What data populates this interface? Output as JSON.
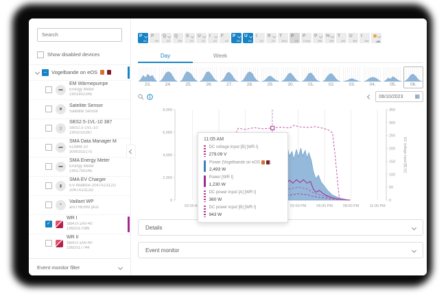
{
  "sidebar": {
    "search_placeholder": "Search",
    "show_disabled_label": "Show disabled devices",
    "plant": {
      "name": "Vogelbande on eOS",
      "checkbox": "indeterminate",
      "accent": "#1782c4",
      "badges": 2
    },
    "devices": [
      {
        "name": "EM Wärmepumpe",
        "type": "Energy Meter",
        "serial": "1901402345",
        "icon": "meter",
        "checked": false
      },
      {
        "name": "Satellite Sensor",
        "type": "Satellite Sensor",
        "serial": "",
        "icon": "satellite",
        "checked": false
      },
      {
        "name": "SBS2.5-1VL-10 387",
        "type": "SBS2.5-1VL-10",
        "serial": "1901010387",
        "icon": "battery",
        "checked": false
      },
      {
        "name": "SMA Data Manager M",
        "type": "EDMM-10",
        "serial": "3000315175",
        "icon": "datamanager",
        "checked": false
      },
      {
        "name": "SMA Energy Meter",
        "type": "Energy Meter",
        "serial": "1901700245",
        "icon": "meter",
        "checked": false
      },
      {
        "name": "SMA EV Charger",
        "type": "EV-Wallbox-2047A1312D",
        "serial": "2047A1312D",
        "icon": "evcharger",
        "checked": false
      },
      {
        "name": "Vaillant WP",
        "type": "aroTHERM plus",
        "serial": "",
        "icon": "heatpump",
        "checked": false
      },
      {
        "name": "WR I",
        "type": "SB4.0-1AV-40",
        "serial": "1992017089",
        "icon": "inverter",
        "checked": true,
        "accent": "#a3278f"
      },
      {
        "name": "WR II",
        "type": "SB4.0-1AV-40",
        "serial": "1992017744",
        "icon": "inverter",
        "checked": false
      }
    ],
    "footer_label": "Event monitor filter"
  },
  "toolbar": {
    "buttons": [
      {
        "main": "P",
        "sub": "AC",
        "selected": true,
        "dropdown": true
      },
      {
        "main": "P",
        "sub": "Set",
        "selected": false,
        "dropdown": false
      },
      {
        "main": "Q",
        "sub": "AC",
        "selected": false,
        "dropdown": true
      },
      {
        "main": "Q",
        "sub": "Set",
        "selected": false,
        "dropdown": false
      },
      {
        "main": "S",
        "sub": "AC",
        "selected": false,
        "dropdown": true
      },
      {
        "main": "U",
        "sub": "AC",
        "selected": false,
        "dropdown": true
      },
      {
        "main": "I",
        "sub": "AC",
        "selected": false,
        "dropdown": true
      },
      {
        "main": "F",
        "sub": "AC",
        "selected": false,
        "dropdown": false
      },
      {
        "main": "P",
        "sub": "DC",
        "selected": true,
        "dropdown": true
      },
      {
        "main": "U",
        "sub": "DC",
        "selected": true,
        "dropdown": true
      },
      {
        "main": "I",
        "sub": "DC",
        "selected": false,
        "dropdown": false
      },
      {
        "main": "R",
        "sub": "DC",
        "selected": false,
        "dropdown": true
      },
      {
        "main": "T",
        "sub": "Mod",
        "selected": false,
        "dropdown": false
      },
      {
        "main": "P",
        "sub": "AC",
        "selected": false,
        "dropdown": false,
        "pressed": true
      },
      {
        "main": "P",
        "sub": "Comp",
        "selected": false,
        "dropdown": false
      },
      {
        "main": "P",
        "sub": "Bat",
        "selected": false,
        "dropdown": true
      },
      {
        "main": "%",
        "sub": "Bat",
        "selected": false,
        "dropdown": true
      },
      {
        "main": "T",
        "sub": "Bat",
        "selected": false,
        "dropdown": false
      },
      {
        "main": "U",
        "sub": "Bat",
        "selected": false,
        "dropdown": false
      },
      {
        "main": "I",
        "sub": "Bat",
        "selected": false,
        "dropdown": false
      },
      {
        "main": "",
        "sub": "",
        "selected": false,
        "dropdown": true,
        "icon": "weather"
      }
    ]
  },
  "tabs": {
    "day": "Day",
    "week": "Week"
  },
  "mini_days": {
    "tiles": [
      {
        "label": "23.",
        "selected": false,
        "shape": [
          0,
          0.2,
          0.5,
          0.3,
          0.6,
          0.4,
          0.5,
          0.2,
          0
        ]
      },
      {
        "label": "24.",
        "selected": false,
        "shape": [
          0,
          0.1,
          0.4,
          0.7,
          0.8,
          0.7,
          0.4,
          0.1,
          0
        ]
      },
      {
        "label": "25.",
        "selected": false,
        "shape": [
          0,
          0.1,
          0.5,
          0.8,
          0.75,
          0.6,
          0.3,
          0.1,
          0
        ]
      },
      {
        "label": "26.",
        "selected": false,
        "shape": [
          0,
          0.1,
          0.4,
          0.75,
          0.8,
          0.6,
          0.3,
          0.1,
          0
        ]
      },
      {
        "label": "27.",
        "selected": false,
        "shape": [
          0,
          0.1,
          0.35,
          0.7,
          0.75,
          0.55,
          0.25,
          0.05,
          0
        ]
      },
      {
        "label": "28.",
        "selected": false,
        "shape": [
          0,
          0.1,
          0.4,
          0.7,
          0.8,
          0.65,
          0.3,
          0.1,
          0
        ]
      },
      {
        "label": "29.",
        "selected": false,
        "shape": [
          0,
          0.05,
          0.2,
          0.4,
          0.45,
          0.3,
          0.15,
          0.05,
          0
        ]
      },
      {
        "label": "30.",
        "selected": false,
        "shape": [
          0,
          0.1,
          0.3,
          0.6,
          0.7,
          0.5,
          0.25,
          0.05,
          0
        ]
      },
      {
        "label": "01.",
        "selected": false,
        "shape": [
          0,
          0.1,
          0.35,
          0.65,
          0.7,
          0.5,
          0.2,
          0.05,
          0
        ]
      },
      {
        "label": "02.",
        "selected": false,
        "shape": [
          0,
          0.1,
          0.4,
          0.6,
          0.65,
          0.45,
          0.2,
          0.05,
          0
        ]
      },
      {
        "label": "03.",
        "selected": false,
        "shape": [
          0,
          0.05,
          0.1,
          0.2,
          0.25,
          0.15,
          0.1,
          0,
          0
        ]
      },
      {
        "label": "04.",
        "selected": false,
        "shape": [
          0,
          0.05,
          0.2,
          0.3,
          0.35,
          0.3,
          0.2,
          0.05,
          0
        ]
      },
      {
        "label": "05.",
        "selected": false,
        "shape": [
          0,
          0.1,
          0.3,
          0.2,
          0.4,
          0.3,
          0.15,
          0.05,
          0
        ]
      },
      {
        "label": "06.",
        "selected": true,
        "shape": [
          0,
          0.1,
          0.3,
          0.55,
          0.6,
          0.45,
          0.2,
          0.05,
          0
        ]
      }
    ]
  },
  "datebar": {
    "date": "06/10/2023"
  },
  "chart_data": {
    "type": "combo",
    "x_unit": "hour",
    "xlim": [
      0,
      24
    ],
    "x_ticks": [
      {
        "h": 2,
        "label": "02:00 AM"
      },
      {
        "h": 5,
        "label": "05:00 AM"
      },
      {
        "h": 8,
        "label": "08:00 AM"
      },
      {
        "h": 11,
        "label": "11:00 AM"
      },
      {
        "h": 14,
        "label": "02:00 PM"
      },
      {
        "h": 17,
        "label": "05:00 PM"
      },
      {
        "h": 20,
        "label": "08:00 PM"
      },
      {
        "h": 23,
        "label": "11:00 PM"
      }
    ],
    "left_axis": {
      "max": 8000,
      "ticks": [
        {
          "v": 0,
          "label": "0"
        },
        {
          "v": 2000,
          "label": "2,000"
        },
        {
          "v": 4000,
          "label": "4,000"
        },
        {
          "v": 6000,
          "label": "6,000"
        },
        {
          "v": 8000,
          "label": "8,000"
        }
      ]
    },
    "right_axis": {
      "max": 350,
      "title": "DC voltage input [B] [V]",
      "ticks": [
        {
          "v": 0,
          "label": "0"
        },
        {
          "v": 50,
          "label": "50"
        },
        {
          "v": 100,
          "label": "100"
        },
        {
          "v": 150,
          "label": "150"
        },
        {
          "v": 200,
          "label": "200"
        },
        {
          "v": 250,
          "label": "250"
        },
        {
          "v": 300,
          "label": "300"
        },
        {
          "v": 350,
          "label": "350"
        }
      ]
    },
    "cursor": {
      "hour": 11.08,
      "right_value": 279
    },
    "series": [
      {
        "name": "Power [Vogelbande on eOS]",
        "kind": "area",
        "axis": "left",
        "style": "solid",
        "color": "#6d9fc9",
        "fill": "#8fb5d8",
        "points": [
          [
            8.3,
            0
          ],
          [
            8.6,
            350
          ],
          [
            8.9,
            1200
          ],
          [
            9.1,
            700
          ],
          [
            9.4,
            2100
          ],
          [
            9.7,
            1500
          ],
          [
            10.0,
            2900
          ],
          [
            10.2,
            2200
          ],
          [
            10.5,
            3400
          ],
          [
            10.8,
            2600
          ],
          [
            11.08,
            2493
          ],
          [
            11.3,
            3600
          ],
          [
            11.5,
            2900
          ],
          [
            11.8,
            4100
          ],
          [
            12.0,
            3400
          ],
          [
            12.3,
            4400
          ],
          [
            12.5,
            3700
          ],
          [
            12.8,
            4600
          ],
          [
            13.0,
            3900
          ],
          [
            13.3,
            4300
          ],
          [
            13.5,
            3600
          ],
          [
            13.8,
            4500
          ],
          [
            14.0,
            3800
          ],
          [
            14.3,
            4600
          ],
          [
            14.5,
            3900
          ],
          [
            14.8,
            4400
          ],
          [
            15.0,
            3700
          ],
          [
            15.2,
            4200
          ],
          [
            15.5,
            3500
          ],
          [
            15.7,
            2600
          ],
          [
            16.0,
            1900
          ],
          [
            16.3,
            2200
          ],
          [
            16.6,
            1600
          ],
          [
            17.0,
            1200
          ],
          [
            17.4,
            800
          ],
          [
            17.8,
            500
          ],
          [
            18.3,
            300
          ],
          [
            18.9,
            150
          ],
          [
            19.5,
            50
          ],
          [
            19.9,
            0
          ]
        ]
      },
      {
        "name": "Power [WR I]",
        "kind": "line",
        "axis": "left",
        "style": "solid",
        "color": "#a3278f",
        "points": [
          [
            8.3,
            0
          ],
          [
            8.8,
            300
          ],
          [
            9.2,
            700
          ],
          [
            9.6,
            500
          ],
          [
            10.0,
            900
          ],
          [
            10.4,
            1100
          ],
          [
            10.8,
            950
          ],
          [
            11.08,
            1230
          ],
          [
            11.4,
            1500
          ],
          [
            11.8,
            1250
          ],
          [
            12.2,
            1650
          ],
          [
            12.6,
            1400
          ],
          [
            13.0,
            1750
          ],
          [
            13.4,
            1500
          ],
          [
            13.8,
            1800
          ],
          [
            14.2,
            1550
          ],
          [
            14.6,
            1800
          ],
          [
            15.0,
            1500
          ],
          [
            15.4,
            1650
          ],
          [
            15.7,
            1000
          ],
          [
            16.0,
            700
          ],
          [
            16.4,
            850
          ],
          [
            16.8,
            600
          ],
          [
            17.2,
            400
          ],
          [
            17.7,
            250
          ],
          [
            18.3,
            120
          ],
          [
            19.0,
            40
          ],
          [
            19.9,
            0
          ]
        ]
      },
      {
        "name": "DC voltage input [B] [WR I]",
        "kind": "line",
        "axis": "right",
        "style": "dashed",
        "color": "#c455a8",
        "points": [
          [
            6.2,
            0
          ],
          [
            6.5,
            140
          ],
          [
            6.8,
            250
          ],
          [
            7.2,
            278
          ],
          [
            8.0,
            274
          ],
          [
            9.0,
            280
          ],
          [
            10.0,
            276
          ],
          [
            11.08,
            279
          ],
          [
            12.0,
            282
          ],
          [
            13.0,
            279
          ],
          [
            13.6,
            290
          ],
          [
            14.0,
            284
          ],
          [
            15.0,
            281
          ],
          [
            16.0,
            284
          ],
          [
            16.8,
            278
          ],
          [
            17.4,
            272
          ],
          [
            17.9,
            260
          ],
          [
            18.2,
            170
          ],
          [
            18.5,
            60
          ],
          [
            18.7,
            0
          ]
        ]
      },
      {
        "name": "DC power input [A] [WR I]",
        "kind": "line",
        "axis": "left",
        "style": "dashed",
        "color": "#b13a98",
        "points": [
          [
            8.3,
            0
          ],
          [
            9.0,
            200
          ],
          [
            10.0,
            280
          ],
          [
            11.08,
            360
          ],
          [
            12.0,
            480
          ],
          [
            13.0,
            430
          ],
          [
            14.0,
            560
          ],
          [
            15.0,
            480
          ],
          [
            15.6,
            350
          ],
          [
            16.2,
            260
          ],
          [
            17.0,
            180
          ],
          [
            17.8,
            100
          ],
          [
            18.6,
            40
          ],
          [
            19.9,
            0
          ]
        ]
      },
      {
        "name": "DC power input [B] [WR I]",
        "kind": "line",
        "axis": "left",
        "style": "dashed",
        "color": "#c155a9",
        "points": [
          [
            8.3,
            0
          ],
          [
            9.0,
            350
          ],
          [
            10.0,
            650
          ],
          [
            11.08,
            943
          ],
          [
            12.0,
            1050
          ],
          [
            13.0,
            980
          ],
          [
            14.0,
            1150
          ],
          [
            15.0,
            980
          ],
          [
            15.6,
            700
          ],
          [
            16.2,
            520
          ],
          [
            17.0,
            360
          ],
          [
            17.8,
            200
          ],
          [
            18.6,
            80
          ],
          [
            19.9,
            0
          ]
        ]
      }
    ]
  },
  "tooltip": {
    "time": "11:05 AM",
    "entries": [
      {
        "label": "DC voltage input [B] [WR I]",
        "value": "279.09 V",
        "marker": "dashed",
        "badges": 0
      },
      {
        "label": "Power [Vogelbande on eOS",
        "label_close": "]",
        "value": "2,493 W",
        "marker": "solid-blue",
        "badges": 2
      },
      {
        "label": "Power [WR I]",
        "value": "1,230 W",
        "marker": "solid-magenta",
        "badges": 0
      },
      {
        "label": "DC power input [A] [WR I]",
        "value": "360 W",
        "marker": "dashed",
        "badges": 0
      },
      {
        "label": "DC power input [B] [WR I]",
        "value": "943 W",
        "marker": "dashed",
        "badges": 0
      }
    ]
  },
  "panels": {
    "details": "Details",
    "event_monitor": "Event monitor"
  },
  "colors": {
    "accent_blue": "#1782c4",
    "series_magenta": "#a3278f",
    "area_blue": "#8fb5d8"
  }
}
